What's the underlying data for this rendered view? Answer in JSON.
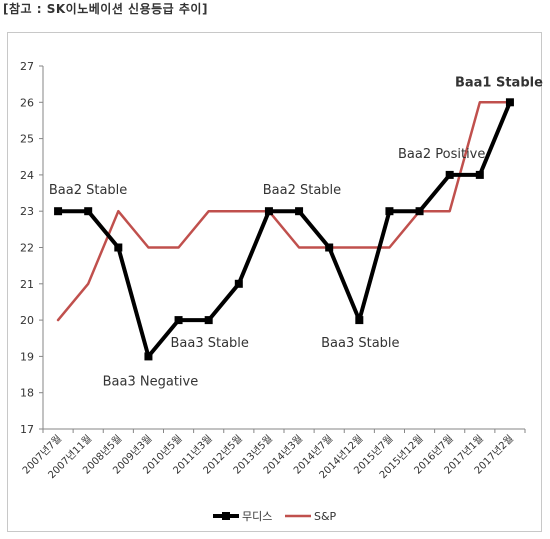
{
  "header": {
    "title": "[참고 : SK이노베이션 신용등급 추이]"
  },
  "chart_data": {
    "type": "line",
    "categories": [
      "2007년7월",
      "2007년11월",
      "2008년5월",
      "2009년3월",
      "2010년5월",
      "2011년3월",
      "2012년5월",
      "2013년5월",
      "2014년3월",
      "2014년7월",
      "2014년12월",
      "2015년7월",
      "2015년12월",
      "2016년7월",
      "2017년1월",
      "2017년2월"
    ],
    "ylim": [
      17,
      27
    ],
    "yticks": [
      17,
      18,
      19,
      20,
      21,
      22,
      23,
      24,
      25,
      26,
      27
    ],
    "grid": false,
    "legend_position": "bottom",
    "series": [
      {
        "name": "무디스",
        "color": "#000000",
        "values": [
          23,
          23,
          22,
          19,
          20,
          20,
          21,
          23,
          23,
          22,
          20,
          23,
          23,
          24,
          24,
          26
        ]
      },
      {
        "name": "S&P",
        "color": "#c0504d",
        "values": [
          20,
          21,
          23,
          22,
          22,
          23,
          23,
          23,
          22,
          22,
          22,
          22,
          23,
          23,
          26,
          26
        ]
      }
    ],
    "annotations": [
      {
        "text": "Baa2 Stable",
        "category_index": 0,
        "value": 23,
        "color": "#333333",
        "bold": false
      },
      {
        "text": "Baa3 Negative",
        "category_index": 3,
        "value": 19,
        "color": "#333333",
        "bold": false
      },
      {
        "text": "Baa3 Stable",
        "category_index": 5,
        "value": 20,
        "color": "#333333",
        "bold": false
      },
      {
        "text": "Baa2 Stable",
        "category_index": 7,
        "value": 23,
        "color": "#333333",
        "bold": false
      },
      {
        "text": "Baa3 Stable",
        "category_index": 10,
        "value": 20,
        "color": "#333333",
        "bold": false
      },
      {
        "text": "Baa2 Positive",
        "category_index": 13,
        "value": 24,
        "color": "#333333",
        "bold": false
      },
      {
        "text": "Baa1 Stable",
        "category_index": 15,
        "value": 26,
        "color": "#c0504d",
        "bold": true
      }
    ]
  }
}
